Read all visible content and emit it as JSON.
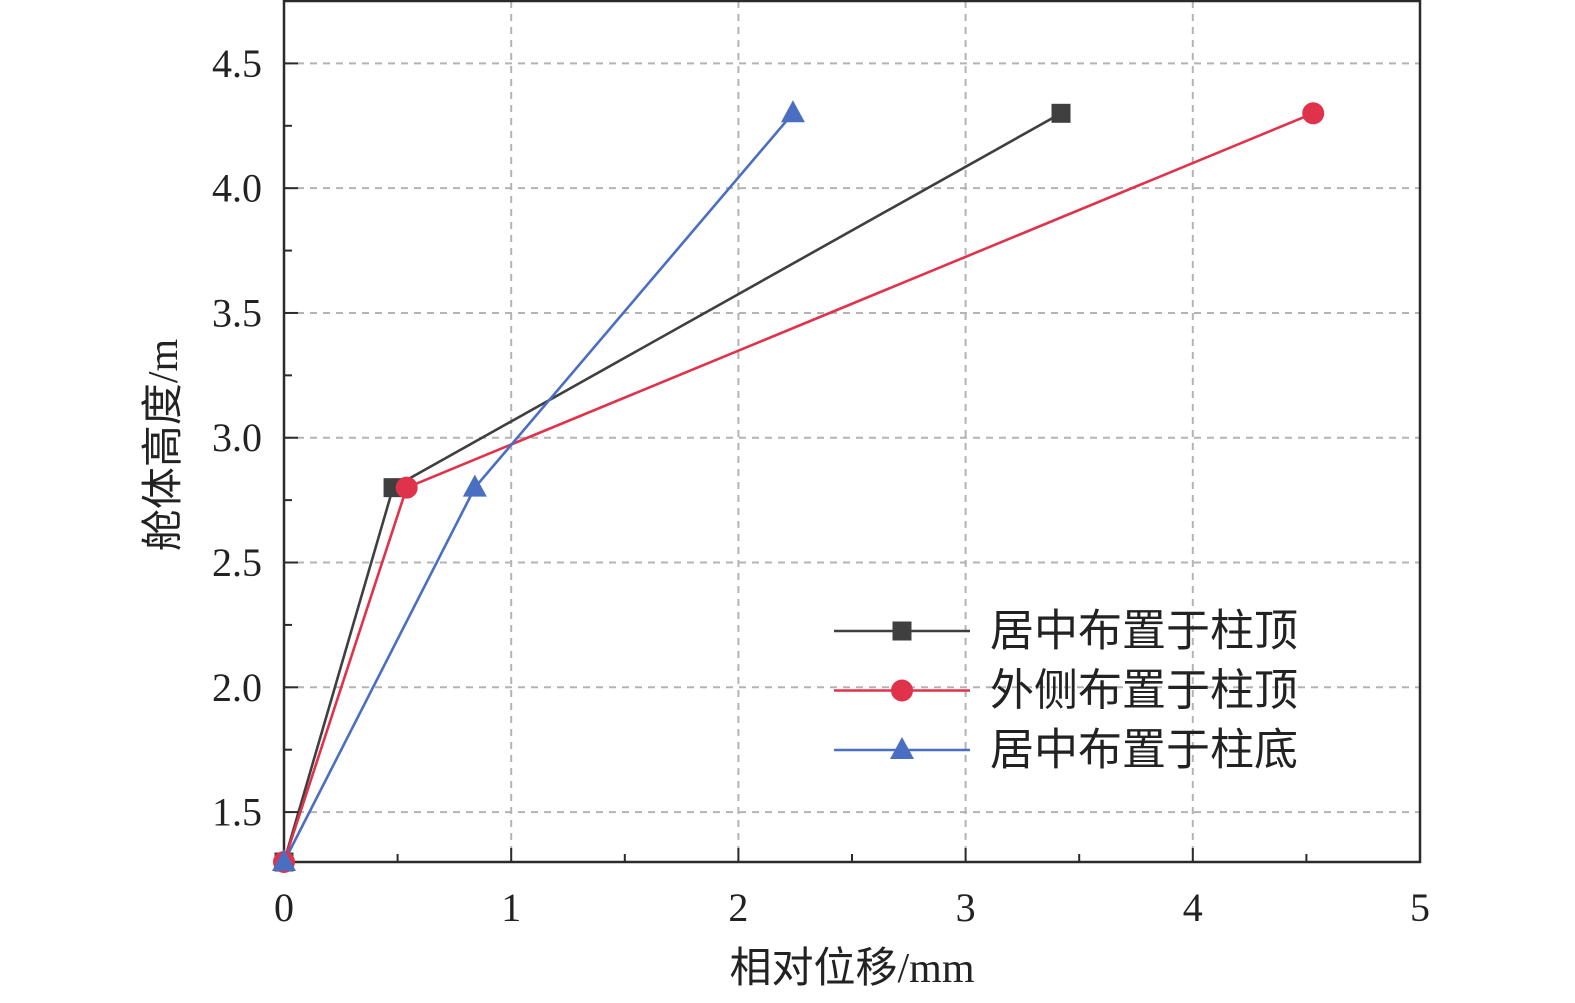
{
  "chart_data": {
    "type": "line",
    "xlabel": "相对位移/mm",
    "ylabel": "舱体高度/m",
    "xlim": [
      0,
      5
    ],
    "ylim": [
      1.3,
      4.75
    ],
    "xtick_labels": [
      "0",
      "1",
      "2",
      "3",
      "4",
      "5"
    ],
    "ytick_labels": [
      "1.5",
      "2.0",
      "2.5",
      "3.0",
      "3.5",
      "4.0",
      "4.5"
    ],
    "grid": true,
    "legend_position": "lower-right",
    "series": [
      {
        "name": "居中布置于柱顶",
        "marker": "square",
        "color": "#3f3f3f",
        "x": [
          0,
          0.48,
          3.42
        ],
        "y": [
          1.3,
          2.8,
          4.3
        ]
      },
      {
        "name": "外侧布置于柱顶",
        "marker": "circle",
        "color": "#e0324b",
        "x": [
          0,
          0.54,
          4.53
        ],
        "y": [
          1.3,
          2.8,
          4.3
        ]
      },
      {
        "name": "居中布置于柱底",
        "marker": "triangle",
        "color": "#4a6fc2",
        "x": [
          0,
          0.84,
          2.24
        ],
        "y": [
          1.3,
          2.8,
          4.3
        ]
      }
    ]
  }
}
